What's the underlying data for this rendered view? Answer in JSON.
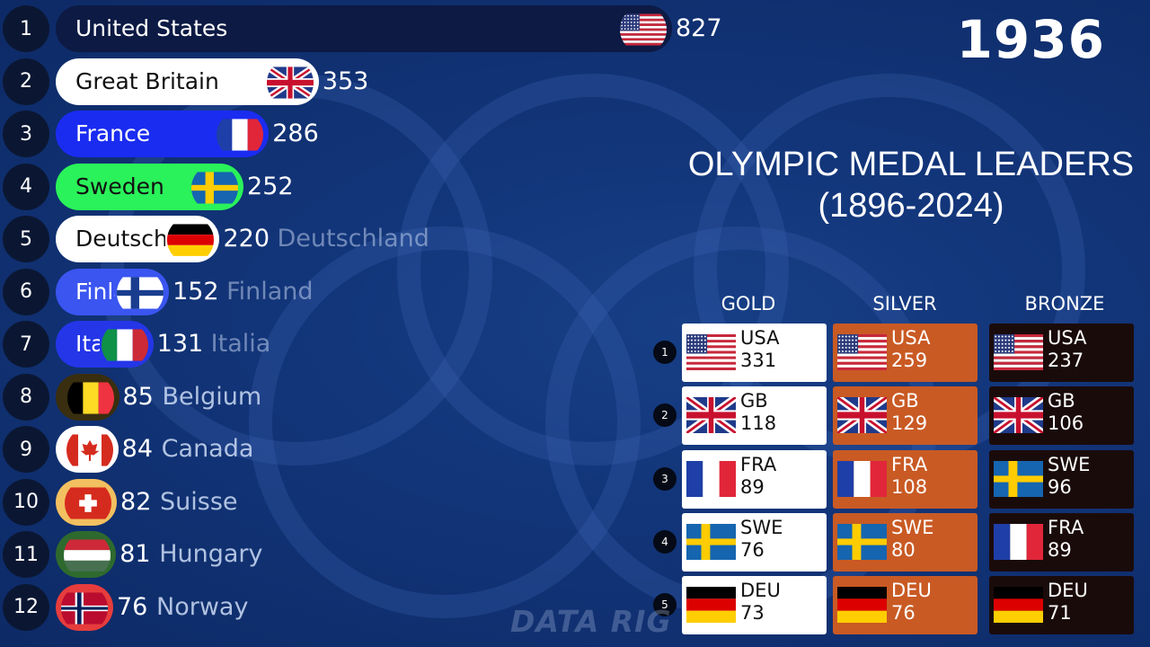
{
  "year": "1936",
  "title_line1": "OLYMPIC MEDAL LEADERS",
  "title_line2": "(1896-2024)",
  "watermark": "DATA RIG",
  "chart_data": {
    "type": "bar",
    "orientation": "horizontal",
    "categories": [
      "United States",
      "Great Britain",
      "France",
      "Sweden",
      "Deutschland",
      "Finland",
      "Italia",
      "Belgium",
      "Canada",
      "Suisse",
      "Hungary",
      "Norway"
    ],
    "series": [
      {
        "values": [
          827,
          353,
          286,
          252,
          220,
          152,
          131,
          85,
          84,
          82,
          81,
          76
        ]
      }
    ],
    "ranks": [
      "1",
      "2",
      "3",
      "4",
      "5",
      "6",
      "7",
      "8",
      "9",
      "10",
      "11",
      "12"
    ],
    "bar_colors": [
      "#0c1a44",
      "#ffffff",
      "#1a2cf0",
      "#2af25a",
      "#ffffff",
      "#3a55f0",
      "#2436e8",
      "#3a2e10",
      "#ffffff",
      "#f2c060",
      "#2e6a2e",
      "#e63c3c"
    ],
    "label_colors": [
      "#ffffff",
      "#111111",
      "#ffffff",
      "#111111",
      "#111111",
      "#ffffff",
      "#ffffff",
      "#ffffff",
      "#ffffff",
      "#ffffff",
      "#ffffff",
      "#ffffff"
    ],
    "flags": [
      "flag-usa",
      "flag-gbr",
      "flag-fra",
      "flag-swe",
      "flag-deu",
      "flag-fin",
      "flag-ita",
      "flag-bel",
      "flag-can",
      "flag-sui",
      "flag-hun",
      "flag-nor"
    ]
  },
  "medal_table": {
    "headers": {
      "gold": "GOLD",
      "silver": "SILVER",
      "bronze": "BRONZE"
    },
    "ranks": [
      "1",
      "2",
      "3",
      "4",
      "5"
    ],
    "gold": [
      {
        "code": "USA",
        "value": "331",
        "flag": "flag-usa"
      },
      {
        "code": "GB",
        "value": "118",
        "flag": "flag-gbr"
      },
      {
        "code": "FRA",
        "value": "89",
        "flag": "flag-fra"
      },
      {
        "code": "SWE",
        "value": "76",
        "flag": "flag-swe"
      },
      {
        "code": "DEU",
        "value": "73",
        "flag": "flag-deu"
      }
    ],
    "silver": [
      {
        "code": "USA",
        "value": "259",
        "flag": "flag-usa"
      },
      {
        "code": "GB",
        "value": "129",
        "flag": "flag-gbr"
      },
      {
        "code": "FRA",
        "value": "108",
        "flag": "flag-fra"
      },
      {
        "code": "SWE",
        "value": "80",
        "flag": "flag-swe"
      },
      {
        "code": "DEU",
        "value": "76",
        "flag": "flag-deu"
      }
    ],
    "bronze": [
      {
        "code": "USA",
        "value": "237",
        "flag": "flag-usa"
      },
      {
        "code": "GB",
        "value": "106",
        "flag": "flag-gbr"
      },
      {
        "code": "SWE",
        "value": "96",
        "flag": "flag-swe"
      },
      {
        "code": "FRA",
        "value": "89",
        "flag": "flag-fra"
      },
      {
        "code": "DEU",
        "value": "71",
        "flag": "flag-deu"
      }
    ]
  }
}
